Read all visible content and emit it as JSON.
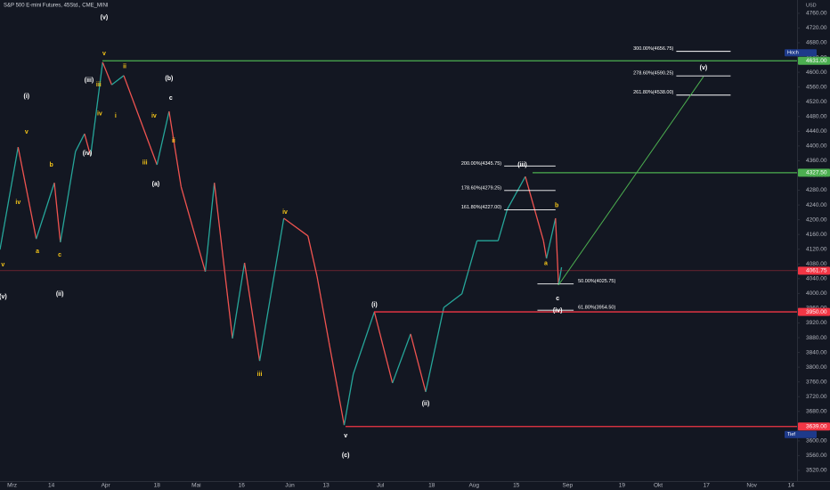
{
  "chart_data": {
    "type": "line",
    "title": "S&P 500 E-mini Futures, 45Std., CME_MINI",
    "y_unit": "USD",
    "x": [
      56,
      62,
      68,
      74,
      76,
      81,
      84,
      86,
      90,
      93,
      97,
      108,
      112,
      116,
      124,
      127,
      133,
      137,
      142,
      150,
      158,
      161,
      165,
      170,
      173,
      180,
      186,
      192,
      197,
      203,
      209,
      214,
      221,
      224,
      230,
      236,
      237,
      240,
      241,
      242
    ],
    "series": [
      {
        "color": "#26a69a",
        "down_color": "#ef5350",
        "values": [
          4119,
          4397,
          4148,
          4300,
          4139,
          4385,
          4433,
          4373,
          4627,
          4566,
          4591,
          4349,
          4494,
          4289,
          4059,
          4300,
          3878,
          4083,
          3817,
          4204,
          4156,
          4047,
          3866,
          3643,
          3781,
          3950,
          3757,
          3890,
          3733,
          3962,
          3999,
          4143,
          4143,
          4228,
          4317,
          4143,
          4095,
          4204,
          4023,
          4071
        ]
      }
    ],
    "xlim": [
      56,
      320
    ],
    "ylim": [
      3491,
      4796
    ],
    "xticks": [
      {
        "value": 60,
        "label": "Mrz"
      },
      {
        "value": 73,
        "label": "14"
      },
      {
        "value": 91,
        "label": "Apr"
      },
      {
        "value": 108,
        "label": "18"
      },
      {
        "value": 121,
        "label": "Mai"
      },
      {
        "value": 136,
        "label": "16"
      },
      {
        "value": 152,
        "label": "Jun"
      },
      {
        "value": 164,
        "label": "13"
      },
      {
        "value": 182,
        "label": "Jul"
      },
      {
        "value": 199,
        "label": "18"
      },
      {
        "value": 213,
        "label": "Aug"
      },
      {
        "value": 227,
        "label": "15"
      },
      {
        "value": 244,
        "label": "Sep"
      },
      {
        "value": 262,
        "label": "19"
      },
      {
        "value": 274,
        "label": "Okt"
      },
      {
        "value": 290,
        "label": "17"
      },
      {
        "value": 305,
        "label": "Nov"
      },
      {
        "value": 318,
        "label": "14"
      }
    ],
    "yticks": [
      {
        "value": 3520,
        "label": "3520.00"
      },
      {
        "value": 3560,
        "label": "3560.00"
      },
      {
        "value": 3600,
        "label": "3600.00"
      },
      {
        "value": 3640,
        "label": "3640.00"
      },
      {
        "value": 3680,
        "label": "3680.00"
      },
      {
        "value": 3720,
        "label": "3720.00"
      },
      {
        "value": 3760,
        "label": "3760.00"
      },
      {
        "value": 3800,
        "label": "3800.00"
      },
      {
        "value": 3840,
        "label": "3840.00"
      },
      {
        "value": 3880,
        "label": "3880.00"
      },
      {
        "value": 3920,
        "label": "3920.00"
      },
      {
        "value": 3960,
        "label": "3960.00"
      },
      {
        "value": 4000,
        "label": "4000.00"
      },
      {
        "value": 4040,
        "label": "4040.00"
      },
      {
        "value": 4080,
        "label": "4080.00"
      },
      {
        "value": 4120,
        "label": "4120.00"
      },
      {
        "value": 4160,
        "label": "4160.00"
      },
      {
        "value": 4200,
        "label": "4200.00"
      },
      {
        "value": 4240,
        "label": "4240.00"
      },
      {
        "value": 4280,
        "label": "4280.00"
      },
      {
        "value": 4320,
        "label": "4320.00"
      },
      {
        "value": 4360,
        "label": "4360.00"
      },
      {
        "value": 4400,
        "label": "4400.00"
      },
      {
        "value": 4440,
        "label": "4440.00"
      },
      {
        "value": 4480,
        "label": "4480.00"
      },
      {
        "value": 4520,
        "label": "4520.00"
      },
      {
        "value": 4560,
        "label": "4560.00"
      },
      {
        "value": 4600,
        "label": "4600.00"
      },
      {
        "value": 4640,
        "label": "4640.00"
      },
      {
        "value": 4680,
        "label": "4680.00"
      },
      {
        "value": 4720,
        "label": "4720.00"
      },
      {
        "value": 4760,
        "label": "4760.00"
      }
    ],
    "grid": false,
    "levels": [
      {
        "value": 4631,
        "label": "4631.00",
        "color": "#4caf50",
        "tag": "Hoch",
        "start": 115
      },
      {
        "value": 4327.5,
        "label": "4327.50",
        "color": "#4caf50",
        "start": 598
      },
      {
        "value": 4061.75,
        "label": "4061.75",
        "color": "#f23645",
        "thin": true,
        "start": 0
      },
      {
        "value": 3950,
        "label": "3950.00",
        "color": "#f23645",
        "start": 420
      },
      {
        "value": 3639,
        "label": "3639.00",
        "color": "#f23645",
        "tag": "Tief",
        "start": 388
      }
    ],
    "fibs": [
      {
        "value": 4656.75,
        "label": "300.00%(4656.75)",
        "from": 280,
        "to": 298,
        "side": "left"
      },
      {
        "value": 4590.25,
        "label": "278.60%(4590.25)",
        "from": 280,
        "to": 298,
        "side": "left"
      },
      {
        "value": 4538,
        "label": "261.80%(4538.00)",
        "from": 280,
        "to": 298,
        "side": "left"
      },
      {
        "value": 4345.75,
        "label": "200.00%(4345.75)",
        "from": 223,
        "to": 240,
        "side": "left"
      },
      {
        "value": 4279.25,
        "label": "178.60%(4279.25)",
        "from": 223,
        "to": 240,
        "side": "left"
      },
      {
        "value": 4227,
        "label": "161.80%(4227.00)",
        "from": 223,
        "to": 240,
        "side": "left"
      },
      {
        "value": 4025.75,
        "label": "50.00%(4025.75)",
        "from": 234,
        "to": 246,
        "side": "right"
      },
      {
        "value": 3954.5,
        "label": "61.80%(3954.50)",
        "from": 234,
        "to": 246,
        "side": "right"
      }
    ],
    "projection": {
      "x": [
        241,
        289
      ],
      "values": [
        4023,
        4588
      ],
      "color": "#4caf50"
    },
    "annotations": [
      {
        "text": "(v)",
        "x": 90.5,
        "y": 4748,
        "color": "#ffffff"
      },
      {
        "text": "v",
        "x": 90.5,
        "y": 4651,
        "color": "#f5c518"
      },
      {
        "text": "ii",
        "x": 97.3,
        "y": 4615,
        "color": "#f5c518"
      },
      {
        "text": "(iii)",
        "x": 85.5,
        "y": 4578,
        "color": "#ffffff"
      },
      {
        "text": "iii",
        "x": 88.7,
        "y": 4566,
        "color": "#f5c518"
      },
      {
        "text": "(b)",
        "x": 112,
        "y": 4583,
        "color": "#ffffff"
      },
      {
        "text": "c",
        "x": 112.6,
        "y": 4530,
        "color": "#ffffff"
      },
      {
        "text": "(i)",
        "x": 64.8,
        "y": 4535,
        "color": "#ffffff"
      },
      {
        "text": "i",
        "x": 94.3,
        "y": 4482,
        "color": "#f5c518"
      },
      {
        "text": "iv",
        "x": 89,
        "y": 4487,
        "color": "#f5c518"
      },
      {
        "text": "iv",
        "x": 107,
        "y": 4482,
        "color": "#f5c518"
      },
      {
        "text": "v",
        "x": 64.8,
        "y": 4438,
        "color": "#f5c518"
      },
      {
        "text": "(iv)",
        "x": 84.9,
        "y": 4380,
        "color": "#ffffff"
      },
      {
        "text": "ii",
        "x": 113.5,
        "y": 4414,
        "color": "#f5c518"
      },
      {
        "text": "(a)",
        "x": 107.6,
        "y": 4296,
        "color": "#ffffff"
      },
      {
        "text": "iii",
        "x": 104,
        "y": 4354,
        "color": "#f5c518"
      },
      {
        "text": "b",
        "x": 73,
        "y": 4349,
        "color": "#f5c518"
      },
      {
        "text": "iv",
        "x": 62,
        "y": 4247,
        "color": "#f5c518"
      },
      {
        "text": "iv",
        "x": 150.4,
        "y": 4221,
        "color": "#f5c518"
      },
      {
        "text": "a",
        "x": 68.4,
        "y": 4114,
        "color": "#f5c518"
      },
      {
        "text": "c",
        "x": 75.8,
        "y": 4105,
        "color": "#f5c518"
      },
      {
        "text": "v",
        "x": 57,
        "y": 4078,
        "color": "#f5c518"
      },
      {
        "text": "(v)",
        "x": 57,
        "y": 3991,
        "color": "#ffffff"
      },
      {
        "text": "(ii)",
        "x": 75.8,
        "y": 3998,
        "color": "#ffffff"
      },
      {
        "text": "iii",
        "x": 142,
        "y": 3781,
        "color": "#f5c518"
      },
      {
        "text": "(i)",
        "x": 180,
        "y": 3969,
        "color": "#ffffff"
      },
      {
        "text": "(ii)",
        "x": 197,
        "y": 3701,
        "color": "#ffffff"
      },
      {
        "text": "v",
        "x": 170.5,
        "y": 3614,
        "color": "#ffffff"
      },
      {
        "text": "(c)",
        "x": 170.5,
        "y": 3561,
        "color": "#ffffff"
      },
      {
        "text": "(iii)",
        "x": 229,
        "y": 4349,
        "color": "#ffffff"
      },
      {
        "text": "b",
        "x": 240.4,
        "y": 4238,
        "color": "#f5c518"
      },
      {
        "text": "a",
        "x": 236.8,
        "y": 4081,
        "color": "#f5c518"
      },
      {
        "text": "c",
        "x": 240.7,
        "y": 3986,
        "color": "#ffffff"
      },
      {
        "text": "(iv)",
        "x": 240.7,
        "y": 3953,
        "color": "#ffffff"
      },
      {
        "text": "(v)",
        "x": 289,
        "y": 4612,
        "color": "#ffffff"
      }
    ]
  }
}
